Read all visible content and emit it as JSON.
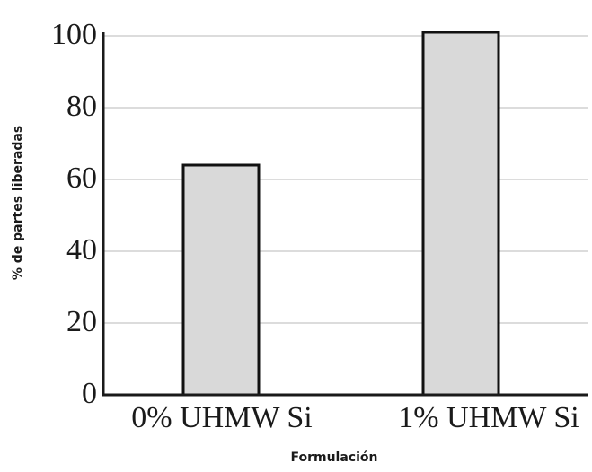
{
  "chart_data": {
    "type": "bar",
    "title": "",
    "xlabel": "Formulación",
    "ylabel": "% de partes liberadas",
    "categories": [
      "0% UHMW Si",
      "1% UHMW Si"
    ],
    "values": [
      64,
      101
    ],
    "ylim": [
      0,
      100
    ],
    "yticks": [
      "0",
      "20",
      "40",
      "60",
      "80",
      "100"
    ],
    "grid": true,
    "colors": {
      "bar_fill": "#d9d9d9",
      "bar_stroke": "#111111",
      "grid": "#c8c8c8"
    }
  }
}
